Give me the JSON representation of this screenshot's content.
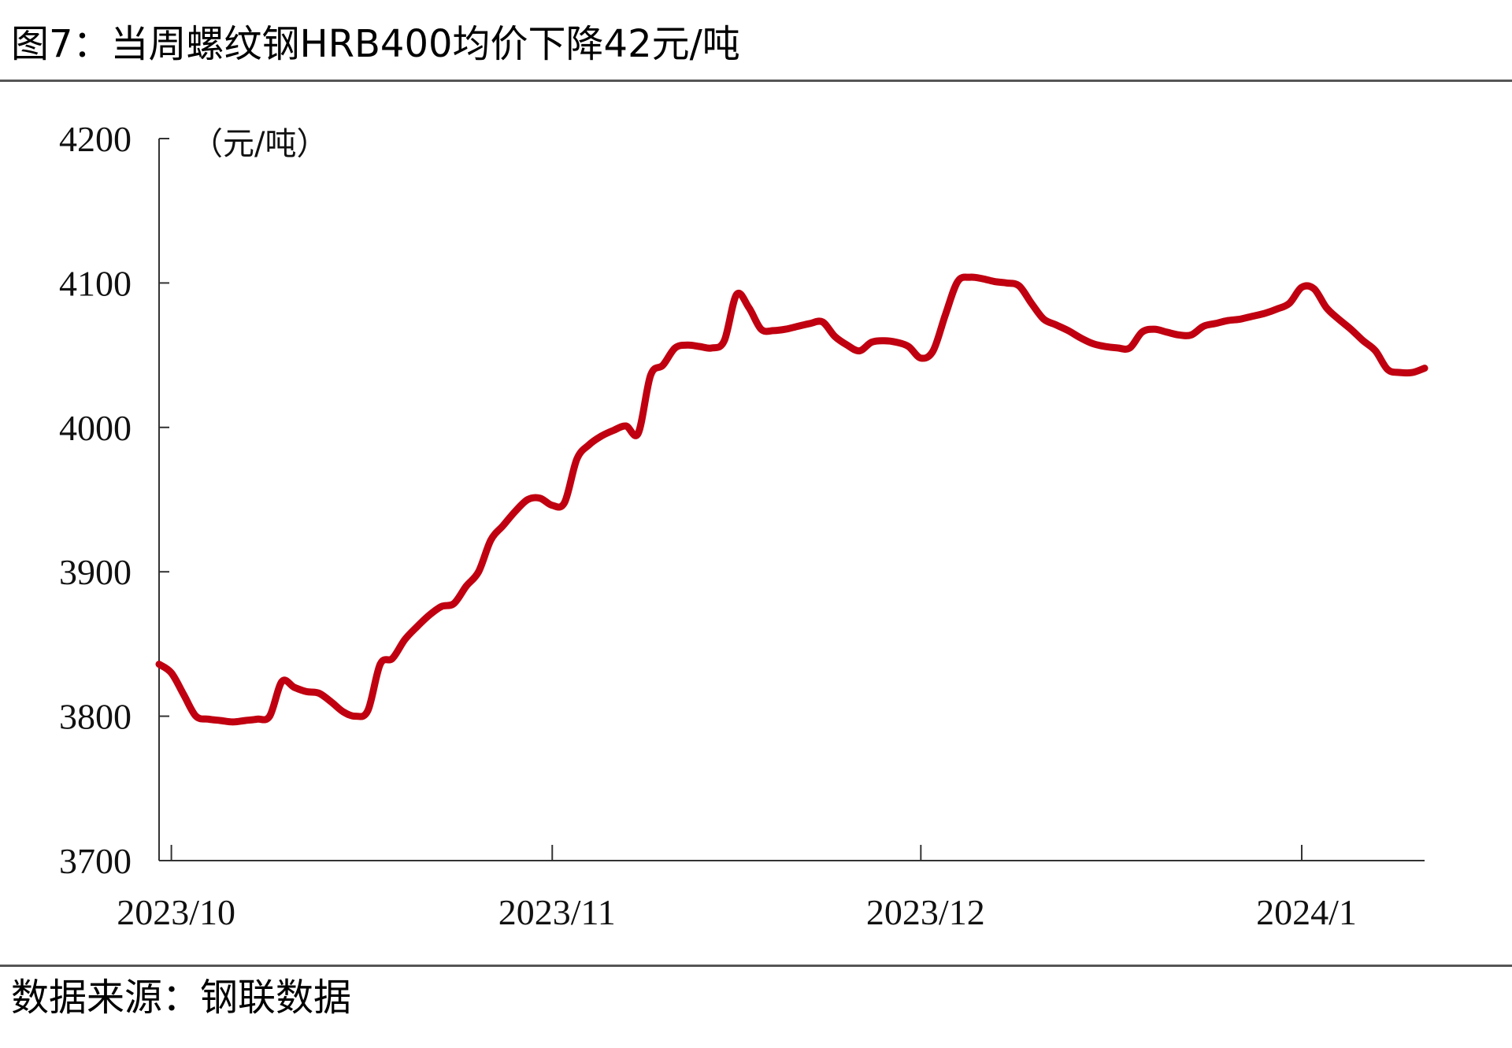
{
  "figure": {
    "title": "图7：当周螺纹钢HRB400均价下降42元/吨",
    "source": "数据来源：钢联数据"
  },
  "chart_data": {
    "type": "line",
    "unit_label": "（元/吨）",
    "ylim": [
      3700,
      4200
    ],
    "y_ticks": [
      3700,
      3800,
      3900,
      4000,
      4100,
      4200
    ],
    "x_start": "2023-09-30",
    "x_end": "2024-01-11",
    "x_ticks": [
      {
        "date": "2023-10-01",
        "label": "2023/10"
      },
      {
        "date": "2023-11-01",
        "label": "2023/11"
      },
      {
        "date": "2023-12-01",
        "label": "2023/12"
      },
      {
        "date": "2024-01-01",
        "label": "2024/1"
      }
    ],
    "grid": false,
    "legend": "none",
    "series": [
      {
        "color": "#c00010",
        "points": [
          [
            "2023-09-30",
            3836
          ],
          [
            "2023-10-01",
            3830
          ],
          [
            "2023-10-02",
            3815
          ],
          [
            "2023-10-03",
            3800
          ],
          [
            "2023-10-04",
            3798
          ],
          [
            "2023-10-05",
            3797
          ],
          [
            "2023-10-06",
            3796
          ],
          [
            "2023-10-07",
            3797
          ],
          [
            "2023-10-08",
            3798
          ],
          [
            "2023-10-09",
            3800
          ],
          [
            "2023-10-10",
            3824
          ],
          [
            "2023-10-11",
            3820
          ],
          [
            "2023-10-12",
            3817
          ],
          [
            "2023-10-13",
            3816
          ],
          [
            "2023-10-14",
            3810
          ],
          [
            "2023-10-15",
            3803
          ],
          [
            "2023-10-16",
            3800
          ],
          [
            "2023-10-17",
            3804
          ],
          [
            "2023-10-18",
            3836
          ],
          [
            "2023-10-19",
            3840
          ],
          [
            "2023-10-20",
            3853
          ],
          [
            "2023-10-21",
            3862
          ],
          [
            "2023-10-22",
            3870
          ],
          [
            "2023-10-23",
            3876
          ],
          [
            "2023-10-24",
            3878
          ],
          [
            "2023-10-25",
            3890
          ],
          [
            "2023-10-26",
            3900
          ],
          [
            "2023-10-27",
            3922
          ],
          [
            "2023-10-28",
            3932
          ],
          [
            "2023-10-29",
            3942
          ],
          [
            "2023-10-30",
            3950
          ],
          [
            "2023-10-31",
            3951
          ],
          [
            "2023-11-01",
            3946
          ],
          [
            "2023-11-02",
            3948
          ],
          [
            "2023-11-03",
            3978
          ],
          [
            "2023-11-04",
            3988
          ],
          [
            "2023-11-05",
            3994
          ],
          [
            "2023-11-06",
            3998
          ],
          [
            "2023-11-07",
            4001
          ],
          [
            "2023-11-08",
            3996
          ],
          [
            "2023-11-09",
            4036
          ],
          [
            "2023-11-10",
            4043
          ],
          [
            "2023-11-11",
            4055
          ],
          [
            "2023-11-12",
            4057
          ],
          [
            "2023-11-13",
            4056
          ],
          [
            "2023-11-14",
            4055
          ],
          [
            "2023-11-15",
            4060
          ],
          [
            "2023-11-16",
            4092
          ],
          [
            "2023-11-17",
            4083
          ],
          [
            "2023-11-18",
            4068
          ],
          [
            "2023-11-19",
            4067
          ],
          [
            "2023-11-20",
            4068
          ],
          [
            "2023-11-21",
            4070
          ],
          [
            "2023-11-22",
            4072
          ],
          [
            "2023-11-23",
            4073
          ],
          [
            "2023-11-24",
            4063
          ],
          [
            "2023-11-25",
            4057
          ],
          [
            "2023-11-26",
            4053
          ],
          [
            "2023-11-27",
            4059
          ],
          [
            "2023-11-28",
            4060
          ],
          [
            "2023-11-29",
            4059
          ],
          [
            "2023-11-30",
            4056
          ],
          [
            "2023-12-01",
            4048
          ],
          [
            "2023-12-02",
            4053
          ],
          [
            "2023-12-03",
            4078
          ],
          [
            "2023-12-04",
            4101
          ],
          [
            "2023-12-05",
            4104
          ],
          [
            "2023-12-06",
            4103
          ],
          [
            "2023-12-07",
            4101
          ],
          [
            "2023-12-08",
            4100
          ],
          [
            "2023-12-09",
            4098
          ],
          [
            "2023-12-10",
            4086
          ],
          [
            "2023-12-11",
            4075
          ],
          [
            "2023-12-12",
            4071
          ],
          [
            "2023-12-13",
            4067
          ],
          [
            "2023-12-14",
            4062
          ],
          [
            "2023-12-15",
            4058
          ],
          [
            "2023-12-16",
            4056
          ],
          [
            "2023-12-17",
            4055
          ],
          [
            "2023-12-18",
            4055
          ],
          [
            "2023-12-19",
            4066
          ],
          [
            "2023-12-20",
            4068
          ],
          [
            "2023-12-21",
            4066
          ],
          [
            "2023-12-22",
            4064
          ],
          [
            "2023-12-23",
            4064
          ],
          [
            "2023-12-24",
            4070
          ],
          [
            "2023-12-25",
            4072
          ],
          [
            "2023-12-26",
            4074
          ],
          [
            "2023-12-27",
            4075
          ],
          [
            "2023-12-28",
            4077
          ],
          [
            "2023-12-29",
            4079
          ],
          [
            "2023-12-30",
            4082
          ],
          [
            "2023-12-31",
            4086
          ],
          [
            "2024-01-01",
            4097
          ],
          [
            "2024-01-02",
            4096
          ],
          [
            "2024-01-03",
            4083
          ],
          [
            "2024-01-04",
            4075
          ],
          [
            "2024-01-05",
            4068
          ],
          [
            "2024-01-06",
            4060
          ],
          [
            "2024-01-07",
            4053
          ],
          [
            "2024-01-08",
            4040
          ],
          [
            "2024-01-09",
            4038
          ],
          [
            "2024-01-10",
            4038
          ],
          [
            "2024-01-11",
            4041
          ]
        ]
      }
    ]
  }
}
